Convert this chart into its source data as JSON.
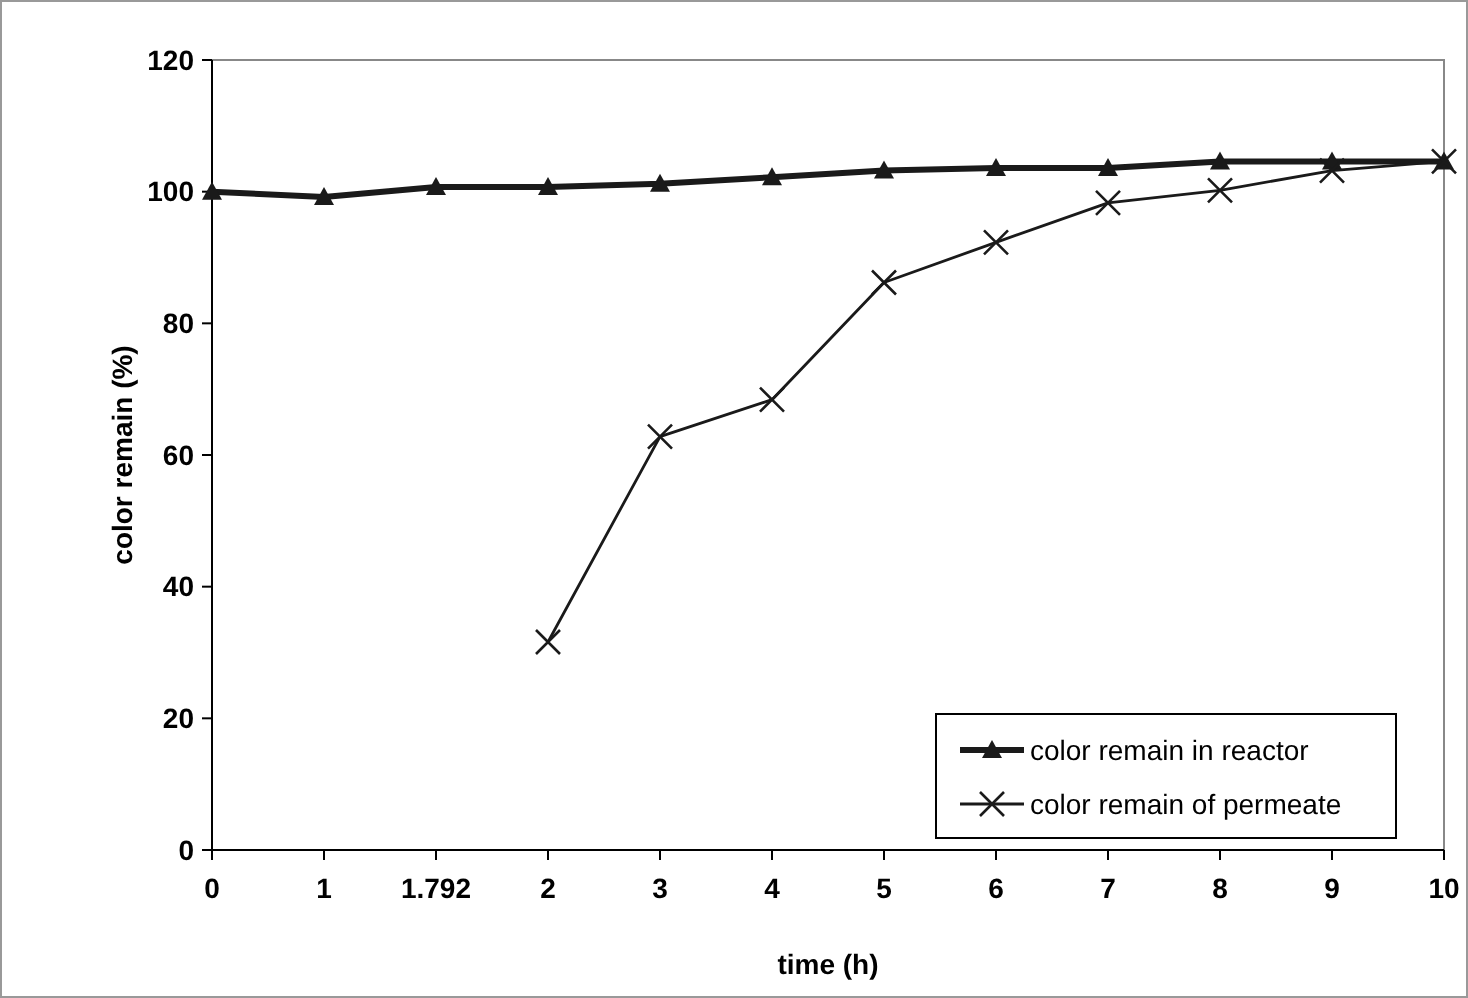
{
  "chart_data": {
    "type": "line",
    "xlabel": "time (h)",
    "ylabel": "color remain (%)",
    "categories": [
      "0",
      "1",
      "1.792",
      "2",
      "3",
      "4",
      "5",
      "6",
      "7",
      "8",
      "9",
      "10"
    ],
    "ylim": [
      0,
      120
    ],
    "yticks": [
      0,
      20,
      40,
      60,
      80,
      100,
      120
    ],
    "grid": false,
    "legend": "bottom right",
    "series": [
      {
        "name": "color remain in reactor",
        "color": "#1a1a1a",
        "marker": "triangle",
        "values": [
          100,
          99.2,
          100.7,
          100.7,
          101.2,
          102.2,
          103.2,
          103.6,
          103.6,
          104.6,
          104.6,
          104.6
        ]
      },
      {
        "name": "color remain of permeate",
        "color": "#1a1a1a",
        "marker": "cross",
        "values": [
          null,
          null,
          null,
          31.6,
          62.8,
          68.4,
          86.2,
          92.3,
          98.3,
          100.2,
          103.2,
          104.6
        ]
      }
    ]
  }
}
